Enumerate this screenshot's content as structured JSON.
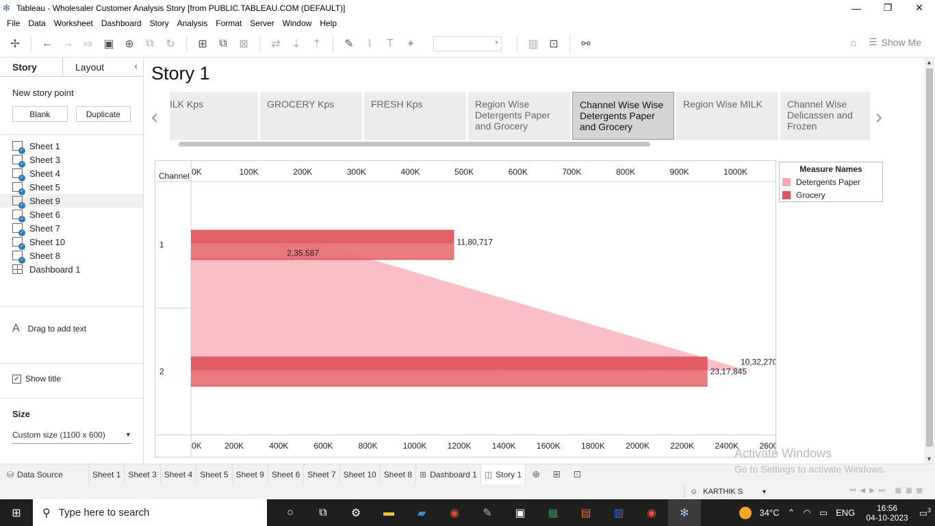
{
  "window": {
    "title": "Tableau - Wholesaler Customer Analysis Story [from PUBLIC.TABLEAU.COM (DEFAULT)]",
    "controls": [
      "—",
      "❐",
      "✕"
    ]
  },
  "menu": [
    "File",
    "Data",
    "Worksheet",
    "Dashboard",
    "Story",
    "Analysis",
    "Format",
    "Server",
    "Window",
    "Help"
  ],
  "toolbar": {
    "show_me": "Show Me"
  },
  "sidebar": {
    "tabs": [
      "Story",
      "Layout"
    ],
    "new_story_point": "New story point",
    "blank_button": "Blank",
    "duplicate_button": "Duplicate",
    "sheets": [
      "Sheet 1",
      "Sheet 3",
      "Sheet 4",
      "Sheet 5",
      "Sheet 9",
      "Sheet 6",
      "Sheet 7",
      "Sheet 10",
      "Sheet 8",
      "Dashboard 1"
    ],
    "drag_text": "Drag to add text",
    "show_title": "Show title",
    "size_label": "Size",
    "size_value": "Custom size (1100 x 600)"
  },
  "story": {
    "title": "Story 1",
    "points": [
      "ILK Kps",
      "GROCERY Kps",
      "FRESH Kps",
      "Region Wise Detergents Paper and Grocery",
      "Channel Wise Wise Detergents Paper and Grocery",
      "Region Wise MILK",
      "Channel Wise Delicassen and Frozen"
    ],
    "active_point_index": 4
  },
  "legend": {
    "title": "Measure Names",
    "items": [
      {
        "name": "Detergents Paper",
        "color": "#f7a9b2"
      },
      {
        "name": "Grocery",
        "color": "#e0545c"
      }
    ]
  },
  "chart_data": {
    "type": "bar",
    "row_header": "Channel",
    "categories": [
      "1",
      "2"
    ],
    "series": [
      {
        "name": "Grocery",
        "values": [
          1180717,
          2317845
        ],
        "labels": [
          "11,80,717",
          "23,17,845"
        ],
        "color": "#e0545c"
      },
      {
        "name": "Detergents Paper",
        "values": [
          235587,
          1032270
        ],
        "labels": [
          "2,35,587",
          "10,32,270"
        ],
        "color": "#f7a9b2"
      }
    ],
    "top_axis": {
      "ticks": [
        "0K",
        "100K",
        "200K",
        "300K",
        "400K",
        "500K",
        "600K",
        "700K",
        "800K",
        "900K",
        "1000K"
      ],
      "max": 1085000
    },
    "bottom_axis": {
      "ticks": [
        "0K",
        "200K",
        "400K",
        "600K",
        "800K",
        "1000K",
        "1200K",
        "1400K",
        "1600K",
        "1800K",
        "2000K",
        "2200K",
        "2400K",
        "2600K"
      ],
      "max": 2620000
    }
  },
  "sheet_tabs": {
    "data_source": "Data Source",
    "tabs": [
      "Sheet 1",
      "Sheet 3",
      "Sheet 4",
      "Sheet 5",
      "Sheet 9",
      "Sheet 6",
      "Sheet 7",
      "Sheet 10",
      "Sheet 8",
      "Dashboard 1",
      "Story 1"
    ],
    "active": "Story 1"
  },
  "watermark": {
    "line1": "Activate Windows",
    "line2": "Go to Settings to activate Windows."
  },
  "status": {
    "user": "KARTHIK S"
  },
  "taskbar": {
    "search_placeholder": "Type here to search",
    "temperature": "34°C",
    "language": "ENG",
    "time": "16:56",
    "date": "04-10-2023",
    "notifications": "3"
  }
}
